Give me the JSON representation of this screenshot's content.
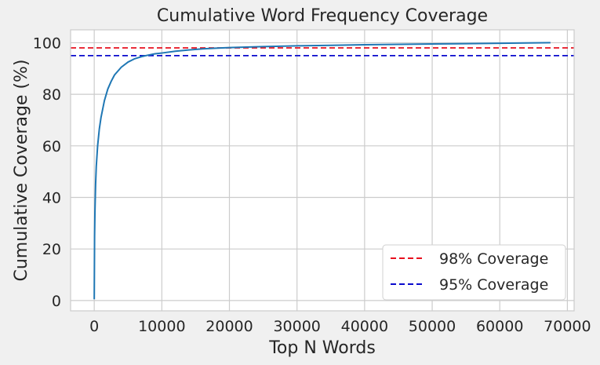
{
  "chart_data": {
    "type": "line",
    "title": "Cumulative Word Frequency Coverage",
    "xlabel": "Top N Words",
    "ylabel": "Cumulative Coverage (%)",
    "xlim": [
      -3500,
      71000
    ],
    "ylim": [
      -4,
      105
    ],
    "xticks": [
      0,
      10000,
      20000,
      30000,
      40000,
      50000,
      60000,
      70000
    ],
    "yticks": [
      0,
      20,
      40,
      60,
      80,
      100
    ],
    "grid": true,
    "legend_position": "lower-right",
    "series": [
      {
        "color": "#1f77b4",
        "x": [
          1,
          50,
          100,
          200,
          300,
          500,
          750,
          1000,
          1500,
          2000,
          2500,
          3000,
          4000,
          5000,
          6000,
          7000,
          8000,
          9000,
          10000,
          12000,
          14000,
          16000,
          18000,
          20000,
          25000,
          30000,
          35000,
          40000,
          45000,
          50000,
          55000,
          60000,
          65000,
          67500
        ],
        "y": [
          0.5,
          25,
          34,
          45,
          52,
          60,
          66.5,
          71,
          77.5,
          82,
          85,
          87.5,
          90.5,
          92.5,
          93.8,
          94.6,
          95.2,
          95.7,
          96.0,
          96.7,
          97.2,
          97.6,
          97.9,
          98.1,
          98.5,
          98.8,
          99.0,
          99.2,
          99.35,
          99.5,
          99.62,
          99.78,
          99.92,
          100
        ]
      }
    ],
    "hlines": [
      {
        "name": "98% Coverage",
        "y": 98,
        "color": "#e8101e",
        "style": "dashed"
      },
      {
        "name": "95% Coverage",
        "y": 95,
        "color": "#0a0acd",
        "style": "dashed"
      }
    ]
  }
}
